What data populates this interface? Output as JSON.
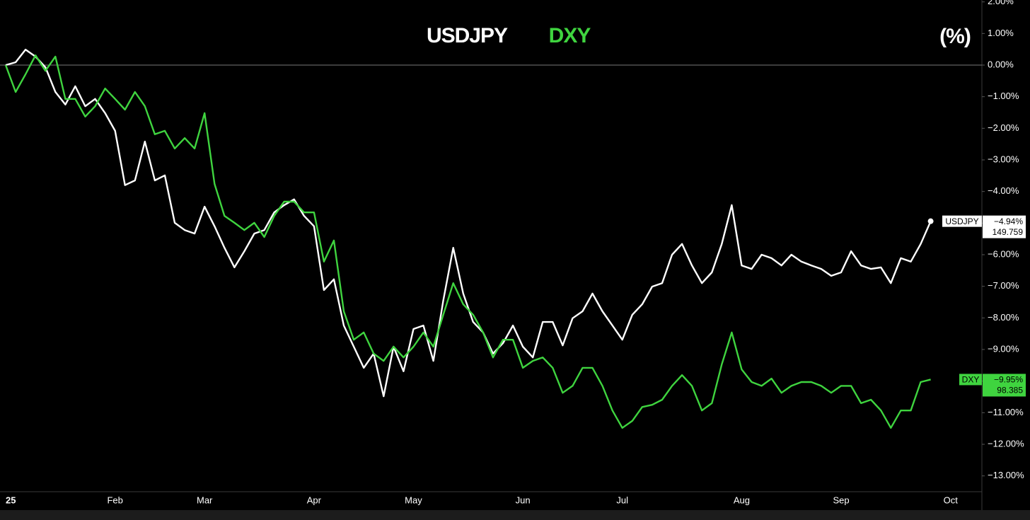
{
  "chart_data": {
    "type": "line",
    "unit_label": "(%)",
    "categories": [
      "25",
      null,
      null,
      null,
      null,
      null,
      null,
      null,
      null,
      null,
      null,
      "Feb",
      null,
      null,
      null,
      null,
      null,
      null,
      null,
      null,
      "Mar",
      null,
      null,
      null,
      null,
      null,
      null,
      null,
      null,
      null,
      null,
      "Apr",
      null,
      null,
      null,
      null,
      null,
      null,
      null,
      null,
      null,
      "May",
      null,
      null,
      null,
      null,
      null,
      null,
      null,
      null,
      null,
      null,
      "Jun",
      null,
      null,
      null,
      null,
      null,
      null,
      null,
      null,
      null,
      "Jul",
      null,
      null,
      null,
      null,
      null,
      null,
      null,
      null,
      null,
      null,
      null,
      "Aug",
      null,
      null,
      null,
      null,
      null,
      null,
      null,
      null,
      null,
      "Sep",
      null,
      null,
      null,
      null,
      null,
      null,
      null,
      null,
      null,
      null,
      "Oct"
    ],
    "series": [
      {
        "name": "USDJPY",
        "color": "#ffffff",
        "marker": true,
        "last_value_label": "−4.94%",
        "last_price": 149.759,
        "values": [
          0,
          0.09,
          0.49,
          0.27,
          -0.07,
          -0.85,
          -1.25,
          -0.67,
          -1.3,
          -1.07,
          -1.52,
          -2.08,
          -3.8,
          -3.65,
          -2.42,
          -3.65,
          -3.49,
          -4.99,
          -5.22,
          -5.33,
          -4.48,
          -5.1,
          -5.78,
          -6.4,
          -5.89,
          -5.33,
          -5.22,
          -4.66,
          -4.43,
          -4.25,
          -4.77,
          -5.1,
          -7.12,
          -6.78,
          -8.24,
          -8.91,
          -9.58,
          -9.13,
          -10.48,
          -8.91,
          -9.69,
          -8.35,
          -8.24,
          -9.36,
          -7.45,
          -5.78,
          -7.23,
          -8.13,
          -8.46,
          -9.13,
          -8.8,
          -8.24,
          -8.91,
          -9.25,
          -8.13,
          -8.13,
          -8.87,
          -8.01,
          -7.79,
          -7.23,
          -7.79,
          -8.24,
          -8.69,
          -7.9,
          -7.57,
          -7.01,
          -6.9,
          -6.0,
          -5.66,
          -6.34,
          -6.9,
          -6.56,
          -5.66,
          -4.43,
          -6.34,
          -6.45,
          -6.0,
          -6.11,
          -6.34,
          -6.0,
          -6.22,
          -6.34,
          -6.45,
          -6.67,
          -6.56,
          -5.89,
          -6.34,
          -6.45,
          -6.4,
          -6.9,
          -6.11,
          -6.22,
          -5.66,
          -4.94,
          null,
          null
        ]
      },
      {
        "name": "DXY",
        "color": "#3fd43f",
        "marker": false,
        "last_value_label": "−9.95%",
        "last_price": 98.385,
        "values": [
          0,
          -0.85,
          -0.29,
          0.31,
          -0.18,
          0.27,
          -1.07,
          -1.07,
          -1.63,
          -1.3,
          -0.74,
          -1.07,
          -1.41,
          -0.85,
          -1.3,
          -2.19,
          -2.08,
          -2.64,
          -2.31,
          -2.64,
          -1.52,
          -3.76,
          -4.77,
          -4.99,
          -5.22,
          -4.99,
          -5.44,
          -4.77,
          -4.32,
          -4.32,
          -4.66,
          -4.66,
          -6.22,
          -5.55,
          -7.79,
          -8.69,
          -8.46,
          -9.13,
          -9.36,
          -8.91,
          -9.25,
          -8.91,
          -8.46,
          -8.91,
          -7.9,
          -6.9,
          -7.57,
          -7.9,
          -8.46,
          -9.25,
          -8.69,
          -8.69,
          -9.58,
          -9.36,
          -9.25,
          -9.58,
          -10.37,
          -10.15,
          -9.58,
          -9.58,
          -10.15,
          -10.93,
          -11.48,
          -11.26,
          -10.82,
          -10.75,
          -10.59,
          -10.15,
          -9.81,
          -10.15,
          -10.93,
          -10.7,
          -9.47,
          -8.46,
          -9.63,
          -10.03,
          -10.15,
          -9.92,
          -10.37,
          -10.15,
          -10.03,
          -10.03,
          -10.15,
          -10.37,
          -10.15,
          -10.15,
          -10.7,
          -10.59,
          -10.93,
          -11.48,
          -10.93,
          -10.93,
          -10.03,
          -9.95,
          null,
          null
        ]
      }
    ],
    "ylim": [
      -13.5,
      2.06
    ],
    "yticks": [
      {
        "value": 2,
        "label": "2.00%"
      },
      {
        "value": 1,
        "label": "1.00%"
      },
      {
        "value": 0,
        "label": "0.00%"
      },
      {
        "value": -1,
        "label": "−1.00%"
      },
      {
        "value": -2,
        "label": "−2.00%"
      },
      {
        "value": -3,
        "label": "−3.00%"
      },
      {
        "value": -4,
        "label": "−4.00%"
      },
      {
        "value": -5,
        "label": "−5.00%"
      },
      {
        "value": -6,
        "label": "−6.00%"
      },
      {
        "value": -7,
        "label": "−7.00%"
      },
      {
        "value": -8,
        "label": "−8.00%"
      },
      {
        "value": -9,
        "label": "−9.00%"
      },
      {
        "value": -10,
        "label": "−10.00%"
      },
      {
        "value": -11,
        "label": "−11.00%"
      },
      {
        "value": -12,
        "label": "−12.00%"
      },
      {
        "value": -13,
        "label": "−13.00%"
      }
    ],
    "reference_line": 0,
    "grid": false
  }
}
